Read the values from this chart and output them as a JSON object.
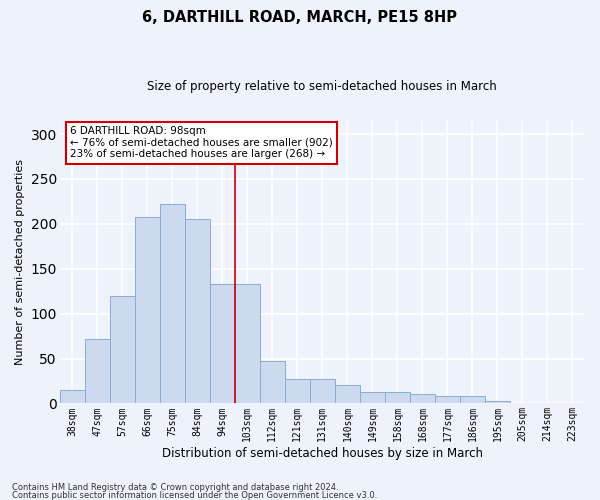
{
  "title": "6, DARTHILL ROAD, MARCH, PE15 8HP",
  "subtitle": "Size of property relative to semi-detached houses in March",
  "xlabel": "Distribution of semi-detached houses by size in March",
  "ylabel": "Number of semi-detached properties",
  "bar_color": "#cdd9ee",
  "bar_edge_color": "#8aadd4",
  "vline_color": "#cc0000",
  "vline_idx": 6.5,
  "annotation_text": "6 DARTHILL ROAD: 98sqm\n← 76% of semi-detached houses are smaller (902)\n23% of semi-detached houses are larger (268) →",
  "annotation_box_color": "#ffffff",
  "annotation_box_edge": "#cc0000",
  "categories": [
    "38sqm",
    "47sqm",
    "57sqm",
    "66sqm",
    "75sqm",
    "84sqm",
    "94sqm",
    "103sqm",
    "112sqm",
    "121sqm",
    "131sqm",
    "140sqm",
    "149sqm",
    "158sqm",
    "168sqm",
    "177sqm",
    "186sqm",
    "195sqm",
    "205sqm",
    "214sqm",
    "223sqm"
  ],
  "values": [
    15,
    72,
    120,
    208,
    222,
    205,
    133,
    133,
    47,
    27,
    27,
    20,
    13,
    13,
    10,
    8,
    8,
    3,
    1,
    0,
    0
  ],
  "ylim": [
    0,
    315
  ],
  "yticks": [
    0,
    50,
    100,
    150,
    200,
    250,
    300
  ],
  "footer1": "Contains HM Land Registry data © Crown copyright and database right 2024.",
  "footer2": "Contains public sector information licensed under the Open Government Licence v3.0.",
  "bg_color": "#eef2fb",
  "grid_color": "#ffffff"
}
